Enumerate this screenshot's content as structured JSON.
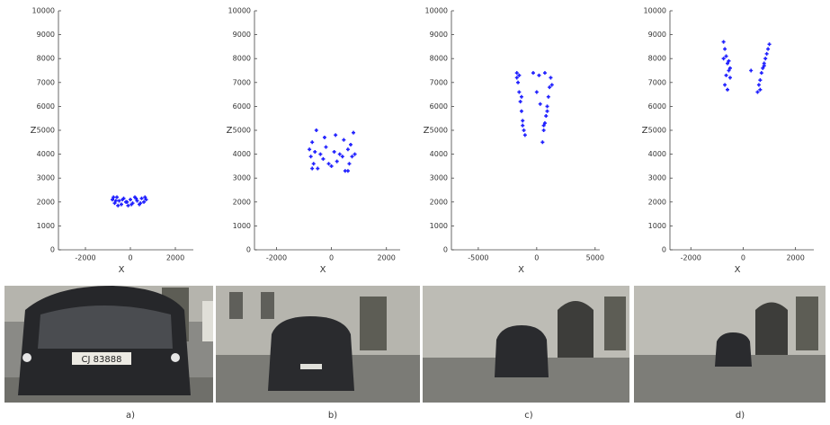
{
  "chart_data": [
    {
      "type": "scatter",
      "caption": "a)",
      "x_label": "X",
      "y_label": "Z",
      "color": "#1f1fff",
      "xlim": [
        -3200,
        2800
      ],
      "ylim": [
        0,
        10000
      ],
      "xticks": [
        -2000,
        0,
        2000
      ],
      "yticks": [
        0,
        1000,
        2000,
        3000,
        4000,
        5000,
        6000,
        7000,
        8000,
        9000,
        10000
      ],
      "x": [
        -800,
        -700,
        -600,
        -500,
        -400,
        -300,
        -200,
        -100,
        0,
        100,
        200,
        300,
        400,
        500,
        600,
        700,
        -750,
        -550,
        -350,
        -150,
        50,
        250,
        450,
        650,
        -650
      ],
      "y": [
        2100,
        1950,
        2200,
        2050,
        1900,
        2150,
        2000,
        1850,
        2100,
        1950,
        2200,
        2050,
        1900,
        2150,
        2000,
        2100,
        2200,
        1850,
        2100,
        2000,
        1900,
        2150,
        1950,
        2200,
        2050
      ]
    },
    {
      "type": "scatter",
      "caption": "b)",
      "x_label": "X",
      "y_label": "Z",
      "color": "#1f1fff",
      "xlim": [
        -2800,
        2500
      ],
      "ylim": [
        0,
        10000
      ],
      "xticks": [
        -2000,
        0,
        2000
      ],
      "yticks": [
        0,
        1000,
        2000,
        3000,
        4000,
        5000,
        6000,
        7000,
        8000,
        9000,
        10000
      ],
      "x": [
        -800,
        -750,
        -700,
        -650,
        -600,
        -500,
        -400,
        -300,
        -200,
        -100,
        0,
        100,
        200,
        300,
        400,
        500,
        600,
        650,
        700,
        750,
        800,
        -550,
        -250,
        150,
        450,
        850,
        -700,
        600
      ],
      "y": [
        4200,
        3900,
        4500,
        3600,
        4100,
        3400,
        4000,
        3800,
        4300,
        3600,
        3500,
        4100,
        3700,
        4000,
        3900,
        3300,
        4200,
        3600,
        4400,
        3900,
        4900,
        5000,
        4700,
        4800,
        4600,
        4000,
        3400,
        3300
      ]
    },
    {
      "type": "scatter",
      "caption": "c)",
      "x_label": "X",
      "y_label": "Z",
      "color": "#1f1fff",
      "xlim": [
        -7300,
        5400
      ],
      "ylim": [
        0,
        10000
      ],
      "xticks": [
        -5000,
        0,
        5000
      ],
      "yticks": [
        0,
        1000,
        2000,
        3000,
        4000,
        5000,
        6000,
        7000,
        8000,
        9000,
        10000
      ],
      "x": [
        -1700,
        -1600,
        -1500,
        -1400,
        -1300,
        -1200,
        -1100,
        -1000,
        -1500,
        -1300,
        -1700,
        -1200,
        500,
        600,
        700,
        800,
        900,
        1000,
        1100,
        1200,
        700,
        900,
        1300,
        600,
        -300,
        0,
        300,
        200
      ],
      "y": [
        7400,
        7000,
        6600,
        6200,
        5800,
        5400,
        5000,
        4800,
        7300,
        6400,
        7200,
        5200,
        4500,
        5000,
        5300,
        5600,
        6000,
        6400,
        6800,
        7200,
        7400,
        5800,
        6900,
        5200,
        7400,
        6600,
        6100,
        7300
      ]
    },
    {
      "type": "scatter",
      "caption": "d)",
      "x_label": "X",
      "y_label": "Z",
      "color": "#1f1fff",
      "xlim": [
        -2800,
        2700
      ],
      "ylim": [
        0,
        10000
      ],
      "xticks": [
        -2000,
        0,
        2000
      ],
      "yticks": [
        0,
        1000,
        2000,
        3000,
        4000,
        5000,
        6000,
        7000,
        8000,
        9000,
        10000
      ],
      "x": [
        -750,
        -700,
        -650,
        -600,
        -550,
        -500,
        -700,
        -600,
        -550,
        -750,
        -650,
        -500,
        550,
        600,
        650,
        700,
        750,
        800,
        850,
        900,
        950,
        1000,
        650,
        800,
        300
      ],
      "y": [
        8700,
        8400,
        8100,
        7800,
        7500,
        7200,
        6900,
        6700,
        7900,
        8000,
        7300,
        7600,
        6600,
        6900,
        7100,
        7400,
        7600,
        7800,
        8000,
        8200,
        8400,
        8600,
        6700,
        7700,
        7500
      ]
    }
  ],
  "photos": {
    "plate_text": "CJ 83888"
  }
}
